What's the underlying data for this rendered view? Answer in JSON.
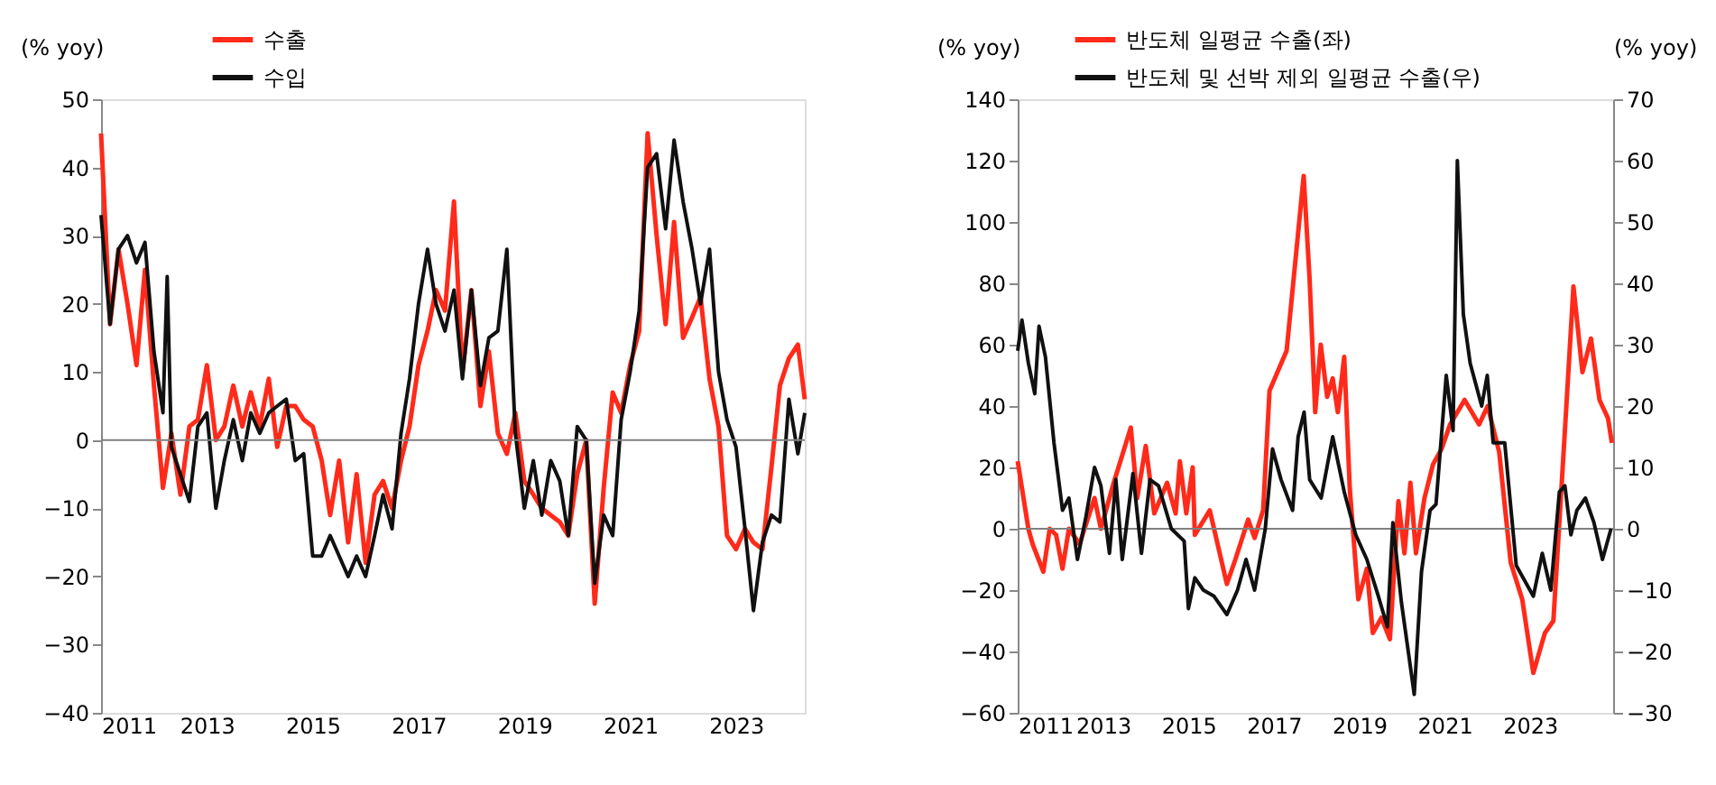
{
  "chart_data": [
    {
      "type": "line",
      "ylabel": "(% yoy)",
      "xlim": [
        2011,
        2024.3
      ],
      "xticks": [
        2011,
        2013,
        2015,
        2017,
        2019,
        2021,
        2023
      ],
      "ylim": [
        -40,
        50
      ],
      "yticks": [
        -40,
        -30,
        -20,
        -10,
        0,
        10,
        20,
        30,
        40,
        50
      ],
      "grid": false,
      "legend": "top left",
      "marker": "none",
      "line_style": "solid",
      "ref_lines": [
        {
          "axis": "y",
          "value": 0,
          "color": "#808080"
        }
      ],
      "series": [
        {
          "name": "수출",
          "color": "#ff2a1a",
          "x": [
            2011.0,
            2011.17,
            2011.33,
            2011.5,
            2011.67,
            2011.83,
            2012.0,
            2012.17,
            2012.33,
            2012.5,
            2012.67,
            2012.83,
            2013.0,
            2013.17,
            2013.33,
            2013.5,
            2013.67,
            2013.83,
            2014.0,
            2014.17,
            2014.33,
            2014.5,
            2014.67,
            2014.83,
            2015.0,
            2015.17,
            2015.33,
            2015.5,
            2015.67,
            2015.83,
            2016.0,
            2016.17,
            2016.33,
            2016.5,
            2016.67,
            2016.83,
            2017.0,
            2017.17,
            2017.33,
            2017.5,
            2017.67,
            2017.83,
            2018.0,
            2018.17,
            2018.33,
            2018.5,
            2018.67,
            2018.83,
            2019.0,
            2019.17,
            2019.33,
            2019.5,
            2019.67,
            2019.83,
            2020.0,
            2020.17,
            2020.33,
            2020.5,
            2020.67,
            2020.83,
            2021.0,
            2021.17,
            2021.33,
            2021.5,
            2021.67,
            2021.83,
            2022.0,
            2022.17,
            2022.33,
            2022.5,
            2022.67,
            2022.83,
            2023.0,
            2023.17,
            2023.33,
            2023.5,
            2023.67,
            2023.83,
            2024.0,
            2024.17,
            2024.3
          ],
          "values": [
            45,
            17,
            28,
            20,
            11,
            25,
            8,
            -7,
            1,
            -8,
            2,
            3,
            11,
            0,
            2,
            8,
            2,
            7,
            2,
            9,
            -1,
            5,
            5,
            3,
            2,
            -3,
            -11,
            -3,
            -15,
            -5,
            -18,
            -8,
            -6,
            -10,
            -3,
            2,
            11,
            16,
            22,
            19,
            35,
            10,
            22,
            5,
            13,
            1,
            -2,
            4,
            -6,
            -8,
            -10,
            -11,
            -12,
            -14,
            -5,
            0,
            -24,
            -7,
            7,
            4,
            11,
            16,
            45,
            30,
            17,
            32,
            15,
            18,
            21,
            9,
            2,
            -14,
            -16,
            -13,
            -15,
            -16,
            -4,
            8,
            12,
            14,
            6
          ]
        },
        {
          "name": "수입",
          "color": "#111111",
          "x": [
            2011.0,
            2011.17,
            2011.33,
            2011.5,
            2011.67,
            2011.83,
            2012.0,
            2012.17,
            2012.25,
            2012.33,
            2012.5,
            2012.67,
            2012.83,
            2013.0,
            2013.17,
            2013.33,
            2013.5,
            2013.67,
            2013.83,
            2014.0,
            2014.17,
            2014.33,
            2014.5,
            2014.67,
            2014.83,
            2015.0,
            2015.17,
            2015.33,
            2015.5,
            2015.67,
            2015.83,
            2016.0,
            2016.17,
            2016.33,
            2016.5,
            2016.67,
            2016.83,
            2017.0,
            2017.17,
            2017.33,
            2017.5,
            2017.67,
            2017.83,
            2018.0,
            2018.17,
            2018.33,
            2018.5,
            2018.67,
            2018.83,
            2019.0,
            2019.17,
            2019.33,
            2019.5,
            2019.67,
            2019.83,
            2020.0,
            2020.17,
            2020.33,
            2020.5,
            2020.67,
            2020.83,
            2021.0,
            2021.17,
            2021.33,
            2021.5,
            2021.67,
            2021.83,
            2022.0,
            2022.17,
            2022.33,
            2022.5,
            2022.67,
            2022.83,
            2023.0,
            2023.17,
            2023.33,
            2023.5,
            2023.67,
            2023.83,
            2024.0,
            2024.17,
            2024.3
          ],
          "values": [
            33,
            17,
            28,
            30,
            26,
            29,
            13,
            4,
            24,
            -1,
            -5,
            -9,
            2,
            4,
            -10,
            -3,
            3,
            -3,
            4,
            1,
            4,
            5,
            6,
            -3,
            -2,
            -17,
            -17,
            -14,
            -17,
            -20,
            -17,
            -20,
            -14,
            -8,
            -13,
            1,
            9,
            20,
            28,
            20,
            16,
            22,
            9,
            22,
            8,
            15,
            16,
            28,
            1,
            -10,
            -3,
            -11,
            -3,
            -6,
            -14,
            2,
            0,
            -21,
            -11,
            -14,
            3,
            10,
            19,
            40,
            42,
            31,
            44,
            35,
            28,
            20,
            28,
            10,
            3,
            -1,
            -13,
            -25,
            -15,
            -11,
            -12,
            6,
            -2,
            4
          ]
        }
      ]
    },
    {
      "type": "line",
      "ylabel": "(% yoy)",
      "y2label": "(% yoy)",
      "xlim": [
        2011,
        2024.95
      ],
      "xticks": [
        2011,
        2013,
        2015,
        2017,
        2019,
        2021,
        2023
      ],
      "ylim": [
        -60,
        140
      ],
      "yticks": [
        -60,
        -40,
        -20,
        0,
        20,
        40,
        60,
        80,
        100,
        120,
        140
      ],
      "y2lim": [
        -30,
        70
      ],
      "y2ticks": [
        -30,
        -20,
        -10,
        0,
        10,
        20,
        30,
        40,
        50,
        60,
        70
      ],
      "grid": false,
      "legend": "top",
      "marker": "none",
      "line_style": "solid",
      "ref_lines": [
        {
          "axis": "y",
          "value": 0,
          "color": "#808080"
        }
      ],
      "series": [
        {
          "name": "반도체 일평균 수출(좌)",
          "color": "#ff2a1a",
          "x": [
            2011.0,
            2011.25,
            2011.35,
            2011.6,
            2011.75,
            2011.9,
            2012.05,
            2012.2,
            2012.45,
            2012.8,
            2012.95,
            2013.25,
            2013.65,
            2013.8,
            2014.0,
            2014.2,
            2014.5,
            2014.7,
            2014.8,
            2014.95,
            2015.1,
            2015.15,
            2015.5,
            2015.9,
            2016.1,
            2016.4,
            2016.55,
            2016.75,
            2016.9,
            2017.3,
            2017.7,
            2017.84,
            2017.97,
            2018.1,
            2018.25,
            2018.38,
            2018.5,
            2018.65,
            2018.78,
            2018.98,
            2019.18,
            2019.32,
            2019.52,
            2019.72,
            2019.92,
            2020.06,
            2020.2,
            2020.33,
            2020.53,
            2020.73,
            2020.93,
            2021.13,
            2021.47,
            2021.81,
            2022.01,
            2022.28,
            2022.55,
            2022.82,
            2023.08,
            2023.35,
            2023.55,
            2023.82,
            2024.02,
            2024.23,
            2024.43,
            2024.63,
            2024.83,
            2024.92
          ],
          "values": [
            22,
            0,
            -5,
            -14,
            0,
            -2,
            -13,
            0,
            -5,
            10,
            0,
            15,
            33,
            10,
            27,
            5,
            15,
            5,
            22,
            5,
            20,
            -2,
            6,
            -18,
            -10,
            3,
            -3,
            6,
            45,
            58,
            115,
            81,
            38,
            60,
            43,
            49,
            38,
            56,
            13,
            -23,
            -13,
            -34,
            -29,
            -36,
            9,
            -8,
            15,
            -8,
            10,
            21,
            26,
            34,
            42,
            34,
            40,
            25,
            -11,
            -23,
            -47,
            -34,
            -30,
            32,
            79,
            51,
            62,
            42,
            36,
            28
          ]
        },
        {
          "name": "반도체 및 선박 제외 일평균 수출(우)",
          "color": "#111111",
          "axis": "y2",
          "x": [
            2011.0,
            2011.1,
            2011.25,
            2011.4,
            2011.5,
            2011.65,
            2011.85,
            2012.05,
            2012.2,
            2012.4,
            2012.6,
            2012.8,
            2012.95,
            2013.15,
            2013.3,
            2013.45,
            2013.7,
            2013.9,
            2014.1,
            2014.3,
            2014.6,
            2014.9,
            2015.0,
            2015.15,
            2015.35,
            2015.6,
            2015.9,
            2016.15,
            2016.35,
            2016.55,
            2016.8,
            2016.97,
            2017.17,
            2017.44,
            2017.57,
            2017.71,
            2017.84,
            2018.11,
            2018.38,
            2018.65,
            2018.92,
            2019.18,
            2019.45,
            2019.66,
            2019.79,
            2019.99,
            2020.29,
            2020.46,
            2020.66,
            2020.8,
            2021.04,
            2021.2,
            2021.3,
            2021.44,
            2021.6,
            2021.87,
            2022.0,
            2022.14,
            2022.41,
            2022.68,
            2023.08,
            2023.29,
            2023.49,
            2023.69,
            2023.82,
            2023.96,
            2024.1,
            2024.3,
            2024.5,
            2024.7,
            2024.9
          ],
          "values": [
            29,
            34,
            27,
            22,
            33,
            28,
            14,
            3,
            5,
            -5,
            2,
            10,
            7,
            -4,
            8,
            -5,
            9,
            -4,
            8,
            7,
            0,
            -2,
            -13,
            -8,
            -10,
            -11,
            -14,
            -10,
            -5,
            -10,
            0,
            13,
            8,
            3,
            15,
            19,
            8,
            5,
            15,
            6,
            -1,
            -5,
            -11,
            -16,
            1,
            -12,
            -27,
            -7,
            3,
            4,
            25,
            16,
            60,
            35,
            27,
            20,
            25,
            14,
            14,
            -6,
            -11,
            -4,
            -10,
            6,
            7,
            -1,
            3,
            5,
            1,
            -5,
            0
          ]
        }
      ]
    }
  ]
}
